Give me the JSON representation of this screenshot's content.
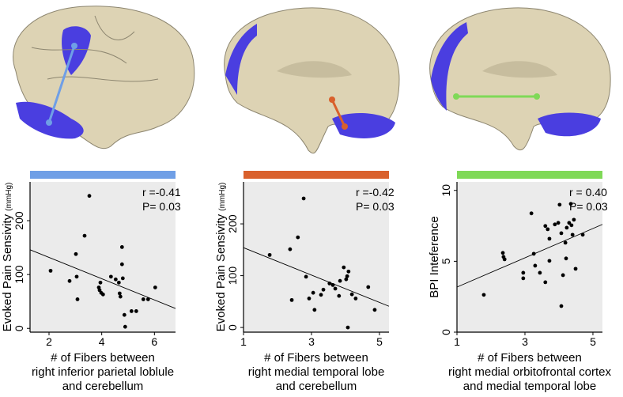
{
  "chart_data": [
    {
      "type": "scatter",
      "bar_color": "#6f9fe6",
      "color": "#000000",
      "line_color": "#000000",
      "ylabel": "Evoked Pain Sensivity",
      "ylabel_unit": "(mmHg)",
      "xlabel": [
        "# of Fibers between",
        "right inferior parietal loblule",
        "and cerebellum"
      ],
      "annotations": [
        "r =-0.41",
        "P= 0.03"
      ],
      "xlim": [
        1.28,
        6.8
      ],
      "ylim": [
        -7,
        272
      ],
      "xticks": [
        2,
        4,
        6
      ],
      "yticks": [
        0,
        100,
        200
      ],
      "x": [
        2.06,
        2.78,
        3.05,
        3.08,
        3.02,
        3.35,
        3.53,
        3.89,
        3.92,
        3.95,
        3.98,
        4.05,
        4.35,
        4.53,
        4.65,
        4.68,
        4.71,
        4.77,
        4.77,
        4.8,
        4.86,
        4.89,
        5.13,
        5.31,
        5.58,
        5.76,
        6.03
      ],
      "values": [
        107,
        88,
        96,
        54,
        138,
        172,
        246,
        76,
        71,
        85,
        66,
        63,
        96,
        91,
        85,
        65,
        59,
        151,
        119,
        93,
        25,
        3,
        32,
        32,
        54,
        54,
        76
      ],
      "fit_line": {
        "x": [
          1.28,
          6.8
        ],
        "y": [
          146,
          37
        ]
      }
    },
    {
      "type": "scatter",
      "bar_color": "#d9602c",
      "color": "#000000",
      "line_color": "#000000",
      "ylabel": "Evoked Pain Sensivity",
      "ylabel_unit": "(mmHg)",
      "xlabel": [
        "# of Fibers between",
        "right medial temporal lobe",
        "and cerebellum"
      ],
      "annotations": [
        "r =-0.42",
        "P= 0.03"
      ],
      "xlim": [
        1,
        5.28
      ],
      "ylim": [
        -9,
        281
      ],
      "xticks": [
        1,
        3,
        5
      ],
      "yticks": [
        0,
        100,
        200
      ],
      "x": [
        1.77,
        2.37,
        2.6,
        2.77,
        2.42,
        2.84,
        2.93,
        3.05,
        3.09,
        3.28,
        3.35,
        3.53,
        3.63,
        3.7,
        3.81,
        3.84,
        3.95,
        4.02,
        4.05,
        4.09,
        4.07,
        4.19,
        4.3,
        4.67,
        4.86
      ],
      "values": [
        140,
        151,
        174,
        249,
        53,
        98,
        56,
        67,
        34,
        63,
        73,
        85,
        82,
        75,
        61,
        90,
        116,
        93,
        99,
        108,
        0,
        64,
        56,
        78,
        34
      ],
      "fit_line": {
        "x": [
          1,
          5.28
        ],
        "y": [
          154,
          41
        ]
      }
    },
    {
      "type": "scatter",
      "bar_color": "#7fd957",
      "color": "#000000",
      "line_color": "#000000",
      "ylabel": "BPI Inteference",
      "xlabel": [
        "# of Fibers between",
        "right medial orbitofrontal cortex",
        "and medial temporal lobe"
      ],
      "annotations": [
        "r = 0.40",
        "P= 0.03"
      ],
      "xlim": [
        1,
        5.28
      ],
      "ylim": [
        0,
        10.6
      ],
      "xticks": [
        1,
        3,
        5
      ],
      "yticks": [
        0,
        5,
        10
      ],
      "x": [
        1.79,
        2.35,
        2.37,
        2.4,
        2.95,
        2.95,
        3.19,
        3.26,
        3.3,
        3.44,
        3.6,
        3.6,
        3.67,
        3.72,
        3.72,
        3.88,
        3.98,
        4.02,
        4.07,
        4.07,
        4.12,
        4.19,
        4.21,
        4.23,
        4.3,
        4.35,
        4.37,
        4.4,
        4.44,
        4.49,
        4.7
      ],
      "values": [
        2.63,
        5.59,
        5.31,
        5.14,
        4.19,
        3.8,
        8.38,
        5.53,
        4.69,
        4.19,
        3.52,
        7.49,
        7.26,
        6.59,
        5.03,
        7.6,
        7.71,
        8.99,
        6.98,
        1.84,
        4.02,
        6.31,
        5.2,
        7.37,
        7.71,
        9.05,
        7.54,
        6.87,
        7.93,
        4.47,
        6.87
      ],
      "fit_line": {
        "x": [
          1,
          5.28
        ],
        "y": [
          3.18,
          7.6
        ]
      }
    }
  ]
}
